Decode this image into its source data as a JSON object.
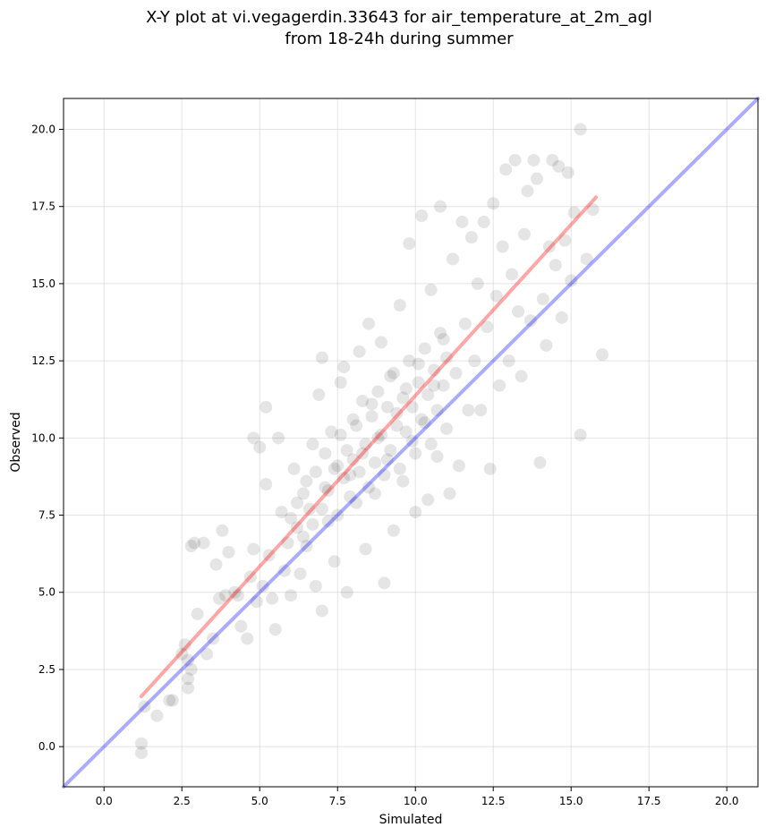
{
  "chart_data": {
    "type": "scatter",
    "title_line1": "X-Y plot at vi.vegagerdin.33643 for air_temperature_at_2m_agl",
    "title_line2": "from 18-24h during summer",
    "xlabel": "Simulated",
    "ylabel": "Observed",
    "xlim": [
      -1.3,
      21.0
    ],
    "ylim": [
      -1.3,
      21.0
    ],
    "xticks": [
      "0.0",
      "2.5",
      "5.0",
      "7.5",
      "10.0",
      "12.5",
      "15.0",
      "17.5",
      "20.0"
    ],
    "yticks": [
      "0.0",
      "2.5",
      "5.0",
      "7.5",
      "10.0",
      "12.5",
      "15.0",
      "17.5",
      "20.0"
    ],
    "grid": true,
    "point_color": "#000000",
    "point_opacity": 0.1,
    "identity_line": {
      "color": "#0000ff",
      "from": [
        -1.3,
        -1.3
      ],
      "to": [
        21.0,
        21.0
      ]
    },
    "regression_line": {
      "color": "#ff0000",
      "from": [
        1.2,
        1.63
      ],
      "to": [
        15.8,
        17.8
      ]
    },
    "points": [
      [
        1.2,
        0.1
      ],
      [
        1.2,
        -0.2
      ],
      [
        1.3,
        1.3
      ],
      [
        1.7,
        1.0
      ],
      [
        2.1,
        1.5
      ],
      [
        2.2,
        1.5
      ],
      [
        2.5,
        3.0
      ],
      [
        2.6,
        3.3
      ],
      [
        2.7,
        2.8
      ],
      [
        2.7,
        2.2
      ],
      [
        2.7,
        1.9
      ],
      [
        2.8,
        2.5
      ],
      [
        2.8,
        6.5
      ],
      [
        2.9,
        6.6
      ],
      [
        3.0,
        4.3
      ],
      [
        3.2,
        6.6
      ],
      [
        3.3,
        3.0
      ],
      [
        3.5,
        3.5
      ],
      [
        3.6,
        5.9
      ],
      [
        3.7,
        4.8
      ],
      [
        3.8,
        7.0
      ],
      [
        3.9,
        4.9
      ],
      [
        4.0,
        6.3
      ],
      [
        4.2,
        5.0
      ],
      [
        4.3,
        4.9
      ],
      [
        4.4,
        3.9
      ],
      [
        4.6,
        3.5
      ],
      [
        4.7,
        5.5
      ],
      [
        4.8,
        6.4
      ],
      [
        4.8,
        10.0
      ],
      [
        4.9,
        4.7
      ],
      [
        5.0,
        9.7
      ],
      [
        5.1,
        5.2
      ],
      [
        5.2,
        8.5
      ],
      [
        5.2,
        11.0
      ],
      [
        5.3,
        6.2
      ],
      [
        5.4,
        4.8
      ],
      [
        5.5,
        3.8
      ],
      [
        5.6,
        10.0
      ],
      [
        5.7,
        7.6
      ],
      [
        5.8,
        5.7
      ],
      [
        5.9,
        6.6
      ],
      [
        6.0,
        4.9
      ],
      [
        6.1,
        9.0
      ],
      [
        6.2,
        7.1
      ],
      [
        6.3,
        5.6
      ],
      [
        6.4,
        8.2
      ],
      [
        6.5,
        6.5
      ],
      [
        6.6,
        7.7
      ],
      [
        6.7,
        9.8
      ],
      [
        6.8,
        5.2
      ],
      [
        6.9,
        11.4
      ],
      [
        7.0,
        12.6
      ],
      [
        7.0,
        4.4
      ],
      [
        7.1,
        8.4
      ],
      [
        7.2,
        7.3
      ],
      [
        7.3,
        10.2
      ],
      [
        7.4,
        6.0
      ],
      [
        7.5,
        9.1
      ],
      [
        7.6,
        11.8
      ],
      [
        7.7,
        12.3
      ],
      [
        7.8,
        5.0
      ],
      [
        7.9,
        8.8
      ],
      [
        8.0,
        10.6
      ],
      [
        8.1,
        7.9
      ],
      [
        8.2,
        12.8
      ],
      [
        8.3,
        9.5
      ],
      [
        8.4,
        6.4
      ],
      [
        8.5,
        13.7
      ],
      [
        8.6,
        11.1
      ],
      [
        8.7,
        8.2
      ],
      [
        8.8,
        10.0
      ],
      [
        8.9,
        13.1
      ],
      [
        9.0,
        5.3
      ],
      [
        9.1,
        9.3
      ],
      [
        9.2,
        12.0
      ],
      [
        9.3,
        7.0
      ],
      [
        9.4,
        10.8
      ],
      [
        9.5,
        14.3
      ],
      [
        9.6,
        8.6
      ],
      [
        9.7,
        11.6
      ],
      [
        9.8,
        16.3
      ],
      [
        9.9,
        9.9
      ],
      [
        10.0,
        7.6
      ],
      [
        10.1,
        12.4
      ],
      [
        10.2,
        17.2
      ],
      [
        10.3,
        10.5
      ],
      [
        10.4,
        8.0
      ],
      [
        10.5,
        14.8
      ],
      [
        10.6,
        11.7
      ],
      [
        10.7,
        9.4
      ],
      [
        10.8,
        17.5
      ],
      [
        10.9,
        13.2
      ],
      [
        11.0,
        10.3
      ],
      [
        11.1,
        8.2
      ],
      [
        11.2,
        15.8
      ],
      [
        11.3,
        12.1
      ],
      [
        11.4,
        9.1
      ],
      [
        11.5,
        17.0
      ],
      [
        11.6,
        13.7
      ],
      [
        11.7,
        10.9
      ],
      [
        11.8,
        16.5
      ],
      [
        11.9,
        12.5
      ],
      [
        12.0,
        15.0
      ],
      [
        12.1,
        10.9
      ],
      [
        12.2,
        17.0
      ],
      [
        12.3,
        13.6
      ],
      [
        12.4,
        9.0
      ],
      [
        12.5,
        17.6
      ],
      [
        12.6,
        14.6
      ],
      [
        12.7,
        11.7
      ],
      [
        12.8,
        16.2
      ],
      [
        12.9,
        18.7
      ],
      [
        13.0,
        12.5
      ],
      [
        13.1,
        15.3
      ],
      [
        13.2,
        19.0
      ],
      [
        13.3,
        14.1
      ],
      [
        13.4,
        12.0
      ],
      [
        13.5,
        16.6
      ],
      [
        13.6,
        18.0
      ],
      [
        13.7,
        13.8
      ],
      [
        13.8,
        19.0
      ],
      [
        13.9,
        18.4
      ],
      [
        14.0,
        9.2
      ],
      [
        14.1,
        14.5
      ],
      [
        14.2,
        13.0
      ],
      [
        14.3,
        16.2
      ],
      [
        14.4,
        19.0
      ],
      [
        14.5,
        15.6
      ],
      [
        14.6,
        18.8
      ],
      [
        14.7,
        13.9
      ],
      [
        14.8,
        16.4
      ],
      [
        14.9,
        18.6
      ],
      [
        15.0,
        15.1
      ],
      [
        15.1,
        17.3
      ],
      [
        15.3,
        20.0
      ],
      [
        15.3,
        10.1
      ],
      [
        15.5,
        15.8
      ],
      [
        15.7,
        17.4
      ],
      [
        16.0,
        12.7
      ],
      [
        6.0,
        7.4
      ],
      [
        6.2,
        7.9
      ],
      [
        6.4,
        6.8
      ],
      [
        6.5,
        8.6
      ],
      [
        6.7,
        7.2
      ],
      [
        6.8,
        8.9
      ],
      [
        7.0,
        7.7
      ],
      [
        7.1,
        9.5
      ],
      [
        7.2,
        8.3
      ],
      [
        7.4,
        9.0
      ],
      [
        7.5,
        7.5
      ],
      [
        7.6,
        10.1
      ],
      [
        7.7,
        8.7
      ],
      [
        7.8,
        9.6
      ],
      [
        7.9,
        8.1
      ],
      [
        8.0,
        9.3
      ],
      [
        8.1,
        10.4
      ],
      [
        8.2,
        8.9
      ],
      [
        8.3,
        11.2
      ],
      [
        8.4,
        9.8
      ],
      [
        8.5,
        8.4
      ],
      [
        8.6,
        10.7
      ],
      [
        8.7,
        9.2
      ],
      [
        8.8,
        11.5
      ],
      [
        8.9,
        10.1
      ],
      [
        9.0,
        8.8
      ],
      [
        9.1,
        11.0
      ],
      [
        9.2,
        9.6
      ],
      [
        9.3,
        12.1
      ],
      [
        9.4,
        10.4
      ],
      [
        9.5,
        9.0
      ],
      [
        9.6,
        11.3
      ],
      [
        9.7,
        10.2
      ],
      [
        9.8,
        12.5
      ],
      [
        9.9,
        11.0
      ],
      [
        10.0,
        9.5
      ],
      [
        10.1,
        11.8
      ],
      [
        10.2,
        10.6
      ],
      [
        10.3,
        12.9
      ],
      [
        10.4,
        11.4
      ],
      [
        10.5,
        9.8
      ],
      [
        10.6,
        12.2
      ],
      [
        10.7,
        10.9
      ],
      [
        10.8,
        13.4
      ],
      [
        10.9,
        11.7
      ],
      [
        11.0,
        12.6
      ]
    ]
  }
}
